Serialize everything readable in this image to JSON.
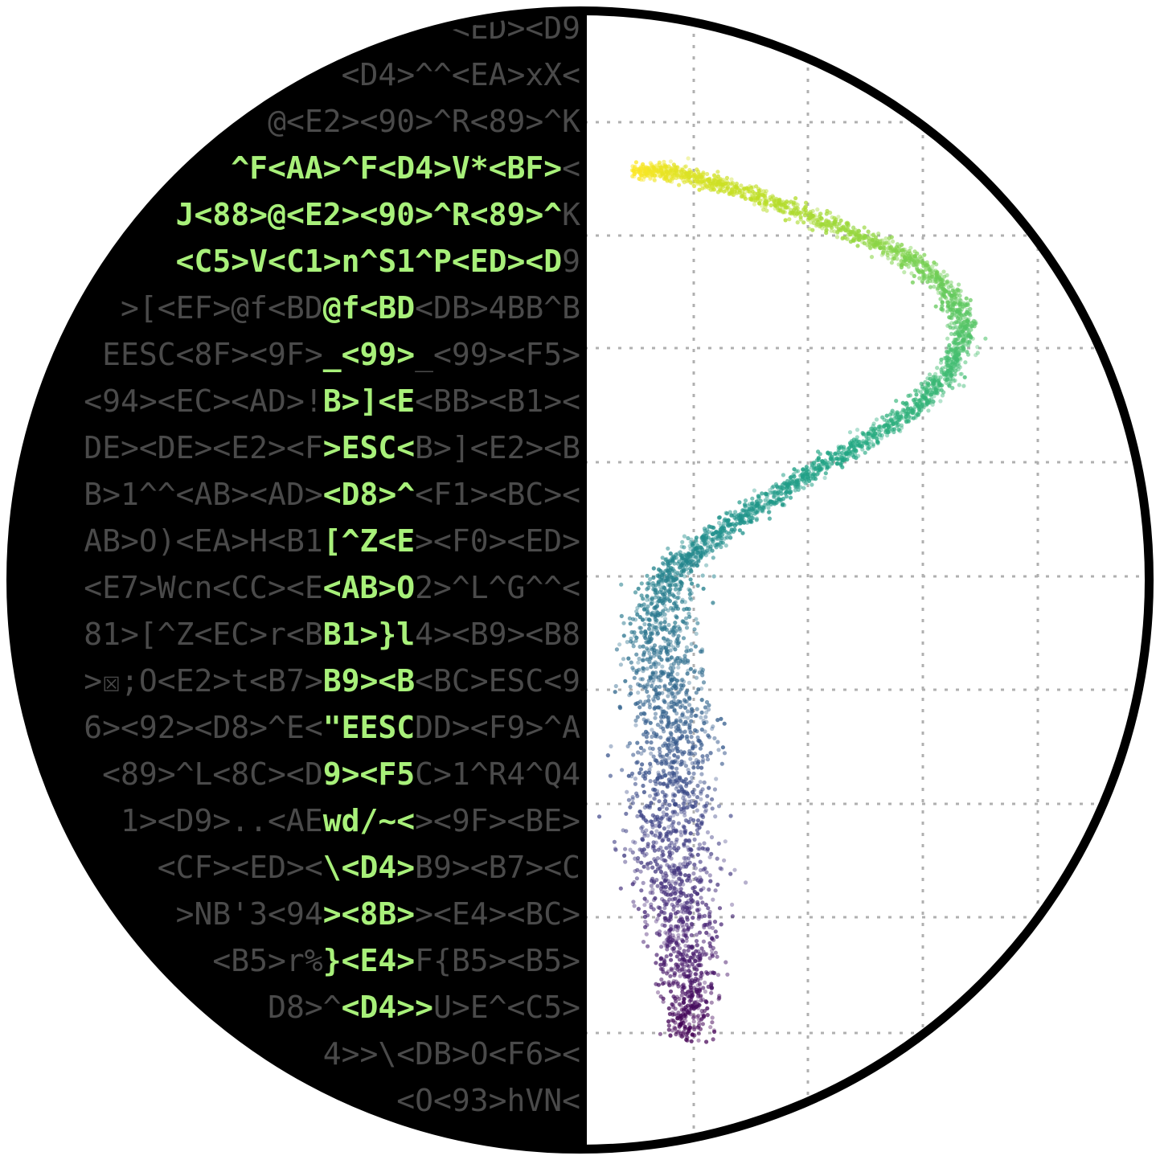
{
  "logo": {
    "colors": {
      "terminal_background": "#000000",
      "dim_text": "#4a4a4a",
      "highlight_text": "#a8f07a",
      "plot_background": "#ffffff",
      "grid": "#b0b0b0",
      "ring": "#000000",
      "colormap": "viridis"
    },
    "terminal_rows": [
      {
        "dim": "<ED><D9",
        "bright": ""
      },
      {
        "dim": "<D4>^^<EA>xX<",
        "bright": ""
      },
      {
        "dim": "@<E2><90>^R<89>^K",
        "bright": ""
      },
      {
        "dim": "<",
        "bright": "^F<AA>^F<D4>V*<BF>"
      },
      {
        "dim": "K",
        "bright": "J<88>@<E2><90>^R<89>^"
      },
      {
        "dim": "9",
        "bright": "<C5>V<C1>n^S1^P<ED><D"
      },
      {
        "dim": ">[<EF>@f<BD|<DB>4BB^B",
        "bright": "@f<BD"
      },
      {
        "dim": "EESC<8F><9F>|_<99><F5>",
        "bright": "_<99>"
      },
      {
        "dim": "<94><EC><AD>!|<BB><B1><",
        "bright": "B>]<E"
      },
      {
        "dim": "DE><DE><E2><F|B>]<E2><B",
        "bright": ">ESC<"
      },
      {
        "dim": "B>1^^<AB><AD>|<F1><BC><",
        "bright": "<D8>^"
      },
      {
        "dim": "AB>O)<EA>H<B1|><F0><ED>",
        "bright": "[^Z<E"
      },
      {
        "dim": "<E7>Wcn<CC><E|2>^L^G^^<",
        "bright": "<AB>O"
      },
      {
        "dim": "81>[^Z<EC>r<B|4><B9><B8",
        "bright": "B1>}l"
      },
      {
        "dim": ">☒;O<E2>t<B7>|<BC>ESC<9",
        "bright": "B9><B"
      },
      {
        "dim": "6><92><D8>^E<|DD><F9>^A",
        "bright": "\"EESC"
      },
      {
        "dim": "<89>^L<8C><D|C>1^R4^Q4",
        "bright": "9><F5"
      },
      {
        "dim": "1><D9>..<AE|><9F><BE>",
        "bright": "wd/~<"
      },
      {
        "dim": "<CF><ED><|B9><B7><C",
        "bright": "\\<D4>"
      },
      {
        "dim": ">NB'3<94|><E4><BC>",
        "bright": "><8B>"
      },
      {
        "dim": "<B5>r%|F{B5><B5>",
        "bright": "}<E4>"
      },
      {
        "dim": "D8>^|U>E^<C5>",
        "bright": "<D4>>"
      },
      {
        "dim": "4>>\\<DB>O<F6><",
        "bright": ""
      },
      {
        "dim": "<O<93>hVN<",
        "bright": ""
      }
    ]
  }
}
